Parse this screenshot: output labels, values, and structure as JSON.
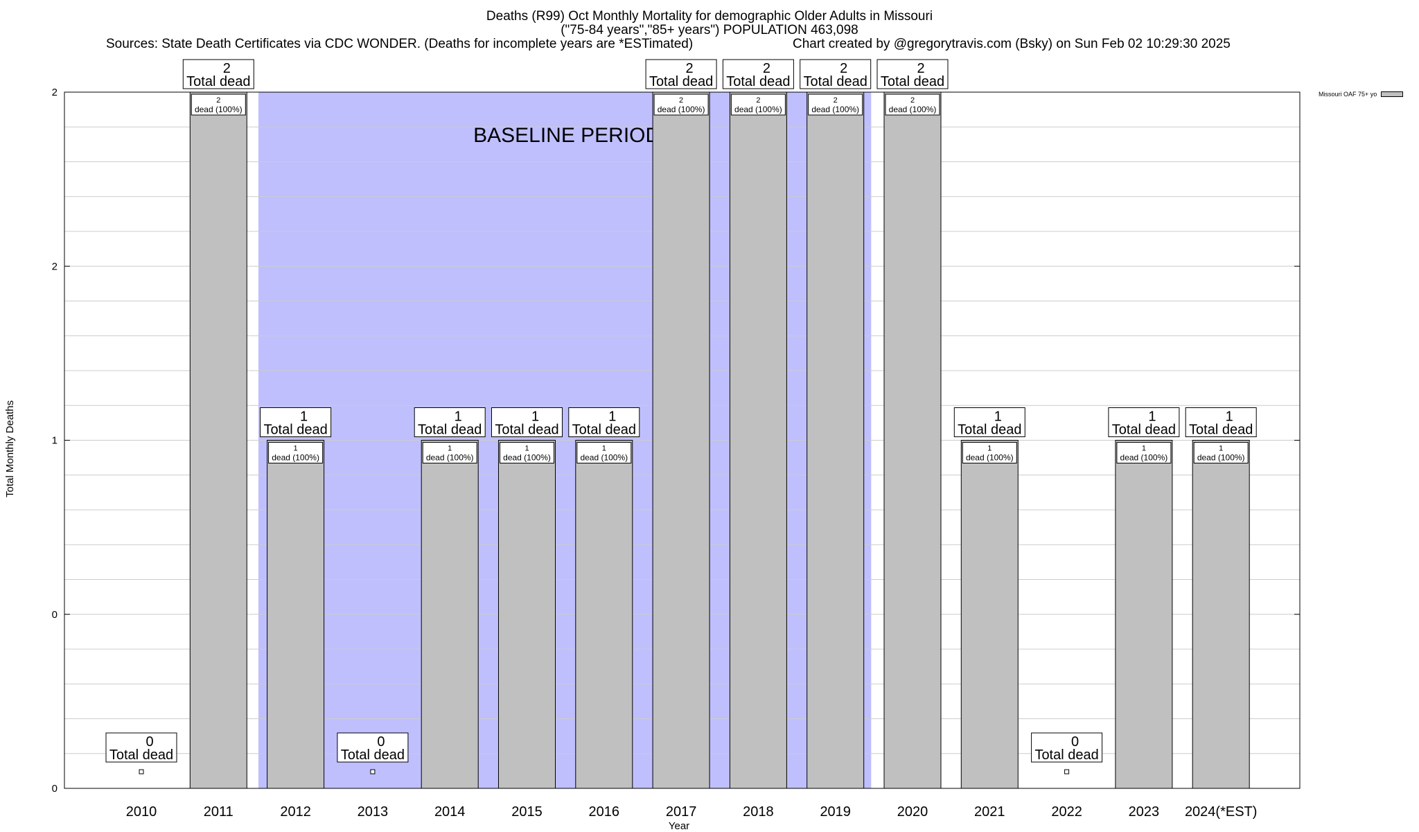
{
  "header": {
    "title_line1": "Deaths (R99) Oct Monthly Mortality for demographic Older Adults in Missouri",
    "title_line2": "(\"75-84 years\",\"85+ years\") POPULATION 463,098",
    "sources": "Sources: State Death Certificates via CDC WONDER. (Deaths for incomplete years are *ESTimated)",
    "credit": "Chart created by @gregorytravis.com (Bsky) on Sun Feb 02 10:29:30 2025"
  },
  "chart_data": {
    "type": "bar",
    "xlabel": "Year",
    "ylabel": "Total Monthly Deaths",
    "categories": [
      "2010",
      "2011",
      "2012",
      "2013",
      "2014",
      "2015",
      "2016",
      "2017",
      "2018",
      "2019",
      "2020",
      "2021",
      "2022",
      "2023",
      "2024(*EST)"
    ],
    "series": [
      {
        "name": "Missouri OAF 75+ yo",
        "values": [
          0,
          2,
          1,
          0,
          1,
          1,
          1,
          2,
          2,
          2,
          2,
          1,
          0,
          1,
          1
        ]
      }
    ],
    "ylim": [
      0,
      2
    ],
    "y_tick_labels": [
      "0",
      "0",
      "1",
      "2",
      "2"
    ],
    "total_labels": [
      "0",
      "2",
      "1",
      "0",
      "1",
      "1",
      "1",
      "2",
      "2",
      "2",
      "2",
      "1",
      "0",
      "1",
      "1"
    ],
    "total_suffix": "Total dead",
    "inner_labels": [
      "",
      "2",
      "1",
      "",
      "1",
      "1",
      "1",
      "2",
      "2",
      "2",
      "2",
      "1",
      "",
      "1",
      "1"
    ],
    "inner_suffix": "dead (100%)",
    "baseline_text": "BASELINE PERIOD",
    "baseline_years": [
      "2012",
      "2013",
      "2014",
      "2015",
      "2016",
      "2017",
      "2018",
      "2019"
    ],
    "colors": {
      "bar": "#c0c0c0",
      "baseline": "#bfbffe",
      "grid": "#cccccc"
    },
    "grid": true,
    "legend_position": "top-right"
  }
}
